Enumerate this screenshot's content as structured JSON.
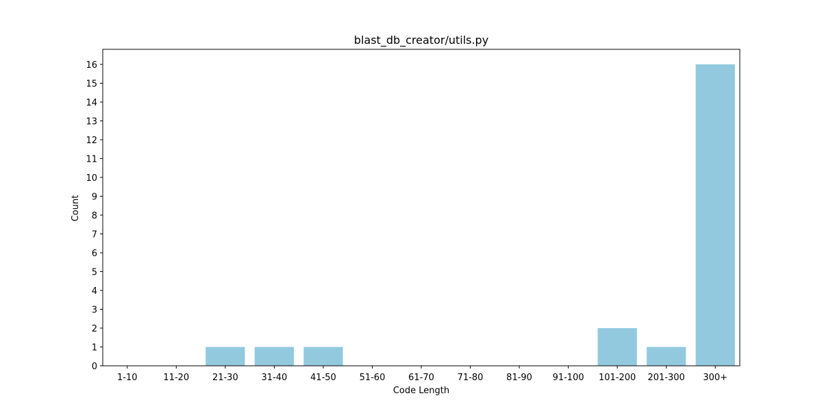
{
  "chart_data": {
    "type": "bar",
    "title": "blast_db_creator/utils.py",
    "xlabel": "Code Length",
    "ylabel": "Count",
    "categories": [
      "1-10",
      "11-20",
      "21-30",
      "31-40",
      "41-50",
      "51-60",
      "61-70",
      "71-80",
      "81-90",
      "91-100",
      "101-200",
      "201-300",
      "300+"
    ],
    "values": [
      0,
      0,
      1,
      1,
      1,
      0,
      0,
      0,
      0,
      0,
      2,
      1,
      16
    ],
    "ylim": [
      0,
      16.8
    ],
    "yticks": [
      0,
      1,
      2,
      3,
      4,
      5,
      6,
      7,
      8,
      9,
      10,
      11,
      12,
      13,
      14,
      15,
      16
    ],
    "grid": false,
    "legend": "none",
    "bar_color": "#92c9df"
  }
}
